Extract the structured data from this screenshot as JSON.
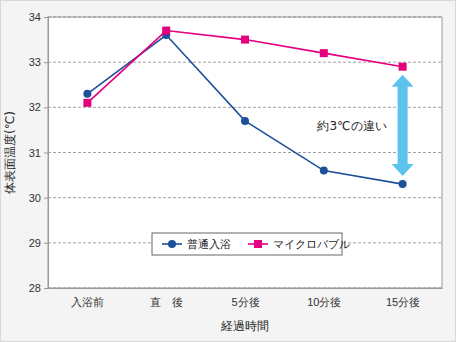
{
  "chart_data": {
    "type": "line",
    "categories": [
      "入浴前",
      "直　後",
      "5分後",
      "10分後",
      "15分後"
    ],
    "series": [
      {
        "name": "普通入浴",
        "color": "#1d4f9a",
        "marker": "circle",
        "values": [
          32.3,
          33.6,
          31.7,
          30.6,
          30.3
        ]
      },
      {
        "name": "マイクロバブル",
        "color": "#e4007f",
        "marker": "square",
        "values": [
          32.1,
          33.7,
          33.5,
          33.2,
          32.9
        ]
      }
    ],
    "x_label": "経過時間",
    "y_label": "体表面温度(℃)",
    "annotation": "約3℃の違い",
    "ylim": [
      28,
      34
    ],
    "yticks": [
      28,
      29,
      30,
      31,
      32,
      33,
      34
    ],
    "grid": true,
    "legend": "bottom"
  }
}
